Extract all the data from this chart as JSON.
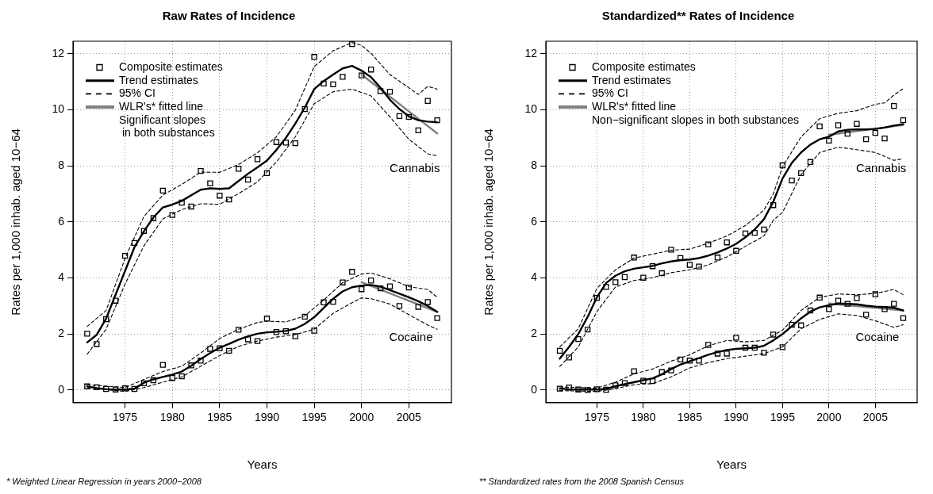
{
  "chart_data": [
    {
      "type": "line",
      "title": "Raw Rates of Incidence",
      "xlabel": "Years",
      "ylabel": "Rates per 1,000 inhab. aged 10−64",
      "xlim": [
        1969.5,
        2009.5
      ],
      "ylim": [
        -0.45,
        12.45
      ],
      "xticks": [
        1975,
        1980,
        1985,
        1990,
        1995,
        2000,
        2005
      ],
      "yticks": [
        0,
        2,
        4,
        6,
        8,
        10,
        12
      ],
      "grid": true,
      "legend": "top left",
      "annotations": [
        "Significant slopes\n in both substances",
        "* Weighted Linear Regression in years 2000−2008",
        "Cannabis",
        "Cocaine"
      ],
      "x": [
        1971,
        1972,
        1973,
        1974,
        1975,
        1976,
        1977,
        1978,
        1979,
        1980,
        1981,
        1982,
        1983,
        1984,
        1985,
        1986,
        1987,
        1988,
        1989,
        1990,
        1991,
        1992,
        1993,
        1994,
        1995,
        1996,
        1997,
        1998,
        1999,
        2000,
        2001,
        2002,
        2003,
        2004,
        2005,
        2006,
        2007,
        2008
      ],
      "series": [
        {
          "name": "Composite estimates",
          "type": "scatter",
          "marker": "square",
          "color": "#000000",
          "values": [
            2.01,
            1.64,
            2.53,
            3.19,
            4.79,
            5.25,
            5.68,
            6.14,
            7.12,
            6.25,
            6.69,
            6.55,
            7.82,
            7.38,
            6.94,
            6.8,
            7.9,
            7.51,
            8.24,
            7.74,
            8.85,
            8.83,
            8.81,
            10.03,
            11.89,
            10.94,
            10.91,
            11.18,
            12.35,
            11.23,
            11.44,
            10.67,
            10.65,
            9.78,
            9.75,
            9.27,
            10.32,
            9.63
          ]
        },
        {
          "name": "Trend estimates",
          "type": "line",
          "line_style": "solid",
          "color": "#000000",
          "values": [
            1.7,
            1.97,
            2.55,
            3.4,
            4.25,
            5.1,
            5.67,
            6.16,
            6.52,
            6.62,
            6.75,
            6.95,
            7.15,
            7.2,
            7.18,
            7.2,
            7.46,
            7.72,
            7.95,
            8.19,
            8.57,
            9.0,
            9.51,
            10.08,
            10.74,
            11.03,
            11.26,
            11.48,
            11.57,
            11.4,
            11.17,
            10.79,
            10.36,
            10.03,
            9.77,
            9.63,
            9.58,
            9.56
          ]
        },
        {
          "name": "95% CI",
          "type": "line",
          "line_style": "dashed",
          "color": "#000000",
          "x": [
            1971,
            1973,
            1975,
            1977,
            1979,
            1981,
            1983,
            1985,
            1987,
            1989,
            1991,
            1993,
            1995,
            1997,
            1999,
            2000,
            2001,
            2003,
            2005,
            2006,
            2007,
            2008
          ],
          "values": [
            2.27,
            2.84,
            4.7,
            6.2,
            6.96,
            7.34,
            7.78,
            7.77,
            8.05,
            8.47,
            9.04,
            9.99,
            11.55,
            12.11,
            12.4,
            12.3,
            12.02,
            11.26,
            10.79,
            10.55,
            10.84,
            10.74
          ]
        },
        {
          "name": "WLR's* fitted line",
          "type": "line",
          "line_style": "solid",
          "color": "#808080",
          "x": [
            2000,
            2008
          ],
          "values": [
            11.26,
            9.16
          ]
        },
        {
          "type": "line",
          "line_style": "dashed",
          "color": "#000000",
          "x": [
            1971,
            1973,
            1975,
            1977,
            1979,
            1981,
            1983,
            1985,
            1987,
            1989,
            1991,
            1993,
            1995,
            1997,
            1999,
            2001,
            2003,
            2005,
            2007,
            2008
          ],
          "values": [
            1.28,
            2.17,
            3.78,
            5.15,
            6.11,
            6.44,
            6.65,
            6.63,
            7.01,
            7.43,
            8.14,
            9.04,
            10.22,
            10.65,
            10.74,
            10.5,
            9.75,
            8.95,
            8.43,
            8.36
          ]
        },
        {
          "type": "scatter",
          "marker": "square",
          "color": "#000000",
          "values": [
            0.13,
            0.1,
            0.04,
            0.02,
            0.06,
            0.04,
            0.24,
            0.35,
            0.9,
            0.43,
            0.49,
            0.88,
            1.05,
            1.47,
            1.49,
            1.4,
            2.15,
            1.81,
            1.75,
            2.55,
            2.07,
            2.1,
            1.92,
            2.62,
            2.12,
            3.13,
            3.15,
            3.84,
            4.22,
            3.6,
            3.91,
            3.63,
            3.7,
            3.0,
            3.66,
            2.97,
            3.14,
            2.57
          ]
        },
        {
          "type": "line",
          "line_style": "solid",
          "color": "#000000",
          "values": [
            0.13,
            0.07,
            0.03,
            0.02,
            0.02,
            0.05,
            0.26,
            0.38,
            0.47,
            0.55,
            0.66,
            0.87,
            1.11,
            1.32,
            1.51,
            1.65,
            1.8,
            1.92,
            2.01,
            2.06,
            2.08,
            2.11,
            2.19,
            2.36,
            2.6,
            2.93,
            3.26,
            3.52,
            3.67,
            3.73,
            3.75,
            3.69,
            3.57,
            3.44,
            3.31,
            3.17,
            3.0,
            2.79
          ]
        },
        {
          "type": "line",
          "line_style": "dashed",
          "color": "#000000",
          "x": [
            1971,
            1975,
            1977,
            1979,
            1981,
            1983,
            1985,
            1987,
            1989,
            1990,
            1992,
            1994,
            1996,
            1998,
            2000,
            2001,
            2003,
            2005,
            2007,
            2008
          ],
          "values": [
            0.19,
            0.09,
            0.38,
            0.66,
            0.85,
            1.32,
            1.84,
            2.17,
            2.41,
            2.46,
            2.43,
            2.65,
            3.21,
            3.83,
            4.14,
            4.18,
            3.97,
            3.69,
            3.59,
            3.31
          ]
        },
        {
          "type": "line",
          "line_style": "dashed",
          "color": "#000000",
          "x": [
            1971,
            1975,
            1977,
            1979,
            1981,
            1983,
            1985,
            1987,
            1989,
            1991,
            1993,
            1995,
            1997,
            1999,
            2000,
            2001,
            2003,
            2005,
            2007,
            2008
          ],
          "values": [
            0.08,
            -0.05,
            0.09,
            0.28,
            0.47,
            0.85,
            1.23,
            1.56,
            1.75,
            1.89,
            1.98,
            2.17,
            2.74,
            3.12,
            3.29,
            3.26,
            3.07,
            2.69,
            2.32,
            2.17
          ]
        },
        {
          "type": "line",
          "line_style": "solid",
          "color": "#808080",
          "x": [
            2000,
            2008
          ],
          "values": [
            3.85,
            2.79
          ]
        }
      ]
    },
    {
      "type": "line",
      "title": "Standardized** Rates of Incidence",
      "xlabel": "Years",
      "ylabel": "Rates per 1,000 inhab. aged 10−64",
      "xlim": [
        1969.5,
        2009.5
      ],
      "ylim": [
        -0.45,
        12.45
      ],
      "xticks": [
        1975,
        1980,
        1985,
        1990,
        1995,
        2000,
        2005
      ],
      "yticks": [
        0,
        2,
        4,
        6,
        8,
        10,
        12
      ],
      "grid": true,
      "legend": "top left",
      "annotations": [
        "Non−significant slopes in both substances",
        "** Standardized rates from the 2008 Spanish Census",
        "Cannabis",
        "Cocaine"
      ],
      "x": [
        1971,
        1972,
        1973,
        1974,
        1975,
        1976,
        1977,
        1978,
        1979,
        1980,
        1981,
        1982,
        1983,
        1984,
        1985,
        1986,
        1987,
        1988,
        1989,
        1990,
        1991,
        1992,
        1993,
        1994,
        1995,
        1996,
        1997,
        1998,
        1999,
        2000,
        2001,
        2002,
        2003,
        2004,
        2005,
        2006,
        2007,
        2008
      ],
      "series": [
        {
          "name": "Composite estimates",
          "type": "scatter",
          "marker": "square",
          "color": "#000000",
          "values": [
            1.4,
            1.16,
            1.82,
            2.16,
            3.29,
            3.68,
            3.85,
            4.03,
            4.73,
            4.01,
            4.42,
            4.17,
            5.01,
            4.71,
            4.47,
            4.41,
            5.2,
            4.73,
            5.27,
            4.97,
            5.59,
            5.61,
            5.73,
            6.6,
            8.02,
            7.48,
            7.74,
            8.14,
            9.41,
            8.9,
            9.45,
            9.15,
            9.5,
            8.95,
            9.18,
            8.98,
            10.14,
            9.63
          ]
        },
        {
          "name": "Trend estimates",
          "type": "line",
          "line_style": "solid",
          "color": "#000000",
          "values": [
            1.12,
            1.54,
            2.0,
            2.61,
            3.31,
            3.82,
            4.08,
            4.24,
            4.33,
            4.38,
            4.43,
            4.52,
            4.59,
            4.64,
            4.66,
            4.71,
            4.8,
            4.91,
            5.05,
            5.22,
            5.45,
            5.73,
            6.1,
            6.72,
            7.55,
            8.11,
            8.48,
            8.76,
            8.95,
            9.04,
            9.23,
            9.29,
            9.3,
            9.3,
            9.32,
            9.37,
            9.44,
            9.49
          ]
        },
        {
          "name": "95% CI",
          "type": "line",
          "line_style": "dashed",
          "color": "#000000",
          "x": [
            1971,
            1973,
            1975,
            1977,
            1979,
            1981,
            1983,
            1985,
            1987,
            1989,
            1991,
            1993,
            1994,
            1995,
            1997,
            1999,
            2001,
            2003,
            2005,
            2006,
            2007,
            2008
          ],
          "values": [
            1.54,
            2.19,
            3.63,
            4.29,
            4.71,
            4.85,
            4.99,
            5.03,
            5.24,
            5.5,
            5.87,
            6.43,
            6.99,
            7.97,
            9.04,
            9.69,
            9.88,
            9.97,
            10.2,
            10.25,
            10.53,
            10.76
          ]
        },
        {
          "name": "WLR's* fitted line",
          "type": "line",
          "line_style": "solid",
          "color": "#808080",
          "x": [
            2000,
            2008
          ],
          "values": [
            9.11,
            9.46
          ]
        },
        {
          "type": "line",
          "line_style": "dashed",
          "color": "#000000",
          "x": [
            1971,
            1973,
            1975,
            1977,
            1979,
            1981,
            1983,
            1985,
            1987,
            1989,
            1991,
            1993,
            1994,
            1995,
            1997,
            1999,
            2001,
            2003,
            2005,
            2007,
            2008
          ],
          "values": [
            0.84,
            1.54,
            2.8,
            3.68,
            3.91,
            4.01,
            4.19,
            4.29,
            4.47,
            4.75,
            5.13,
            5.5,
            6.06,
            6.34,
            7.69,
            8.48,
            8.67,
            8.58,
            8.48,
            8.2,
            8.25
          ]
        },
        {
          "type": "scatter",
          "marker": "square",
          "color": "#000000",
          "values": [
            0.05,
            0.09,
            0.02,
            0.0,
            0.03,
            0.01,
            0.17,
            0.25,
            0.67,
            0.33,
            0.32,
            0.64,
            0.7,
            1.09,
            1.05,
            1.05,
            1.61,
            1.3,
            1.3,
            1.87,
            1.51,
            1.51,
            1.33,
            1.98,
            1.53,
            2.33,
            2.31,
            2.84,
            3.3,
            2.89,
            3.19,
            3.08,
            3.28,
            2.69,
            3.42,
            2.89,
            3.08,
            2.57
          ]
        },
        {
          "type": "line",
          "line_style": "solid",
          "color": "#000000",
          "values": [
            0.05,
            0.03,
            0.02,
            0.02,
            0.02,
            0.04,
            0.14,
            0.21,
            0.28,
            0.35,
            0.42,
            0.56,
            0.75,
            0.91,
            1.03,
            1.14,
            1.26,
            1.35,
            1.43,
            1.47,
            1.49,
            1.51,
            1.58,
            1.77,
            2.0,
            2.28,
            2.56,
            2.8,
            2.95,
            3.03,
            3.08,
            3.08,
            3.06,
            3.01,
            2.98,
            2.96,
            2.94,
            2.84
          ]
        },
        {
          "type": "line",
          "line_style": "dashed",
          "color": "#000000",
          "x": [
            1971,
            1975,
            1977,
            1979,
            1981,
            1983,
            1985,
            1987,
            1989,
            1991,
            1993,
            1995,
            1997,
            1999,
            2001,
            2003,
            2005,
            2007,
            2008
          ],
          "values": [
            0.11,
            0.07,
            0.28,
            0.58,
            0.75,
            1.03,
            1.26,
            1.58,
            1.77,
            1.72,
            1.77,
            2.14,
            2.84,
            3.31,
            3.43,
            3.4,
            3.45,
            3.59,
            3.4
          ]
        },
        {
          "type": "line",
          "line_style": "dashed",
          "color": "#000000",
          "x": [
            1971,
            1975,
            1977,
            1979,
            1981,
            1983,
            1985,
            1987,
            1989,
            1991,
            1993,
            1995,
            1997,
            1999,
            2001,
            2003,
            2005,
            2007,
            2008
          ],
          "values": [
            -0.02,
            -0.05,
            0.05,
            0.19,
            0.23,
            0.47,
            0.79,
            0.98,
            1.12,
            1.21,
            1.3,
            1.54,
            2.19,
            2.52,
            2.72,
            2.66,
            2.47,
            2.24,
            2.33
          ]
        },
        {
          "type": "line",
          "line_style": "solid",
          "color": "#808080",
          "x": [
            2000,
            2008
          ],
          "values": [
            3.09,
            2.84
          ]
        }
      ]
    }
  ]
}
